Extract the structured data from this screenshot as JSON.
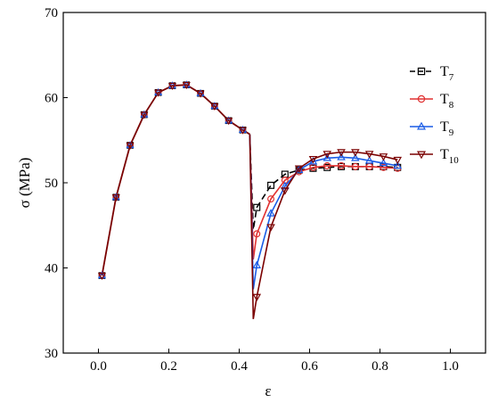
{
  "chart_data": {
    "type": "line",
    "title": "",
    "xlabel": "ε",
    "ylabel": "σ (MPa)",
    "xlim": [
      -0.1,
      1.1
    ],
    "ylim": [
      30,
      70
    ],
    "xticks": [
      0.0,
      0.2,
      0.4,
      0.6,
      0.8,
      1.0
    ],
    "xtick_labels": [
      "0.0",
      "0.2",
      "0.4",
      "0.6",
      "0.8",
      "1.0"
    ],
    "yticks": [
      30,
      40,
      50,
      60,
      70
    ],
    "ytick_labels": [
      "30",
      "40",
      "50",
      "60",
      "70"
    ],
    "legend_position": "top-right",
    "grid": false,
    "curve_common": {
      "x": [
        0.01,
        0.05,
        0.09,
        0.13,
        0.17,
        0.21,
        0.25,
        0.29,
        0.33,
        0.37,
        0.41,
        0.43
      ],
      "y": [
        39.1,
        48.3,
        54.4,
        58.0,
        60.6,
        61.4,
        61.5,
        60.5,
        59.0,
        57.3,
        56.2,
        55.7
      ]
    },
    "series": [
      {
        "name": "T",
        "subscript": "7",
        "color": "#000000",
        "marker": "square",
        "x": [
          0.44,
          0.45,
          0.49,
          0.53,
          0.57,
          0.61,
          0.65,
          0.69,
          0.73,
          0.77,
          0.81,
          0.85
        ],
        "y": [
          44.5,
          47.1,
          49.7,
          51.0,
          51.5,
          51.7,
          51.8,
          51.9,
          51.9,
          51.9,
          51.9,
          51.8
        ]
      },
      {
        "name": "T",
        "subscript": "8",
        "color": "#e03030",
        "marker": "circle",
        "x": [
          0.44,
          0.45,
          0.49,
          0.53,
          0.57,
          0.61,
          0.65,
          0.69,
          0.73,
          0.77,
          0.81,
          0.85
        ],
        "y": [
          41.0,
          44.0,
          48.1,
          50.3,
          51.3,
          51.8,
          52.0,
          52.0,
          51.9,
          51.9,
          51.8,
          51.7
        ]
      },
      {
        "name": "T",
        "subscript": "9",
        "color": "#1a5ce6",
        "marker": "triangle-up",
        "x": [
          0.44,
          0.45,
          0.49,
          0.53,
          0.57,
          0.61,
          0.65,
          0.69,
          0.73,
          0.77,
          0.81,
          0.85
        ],
        "y": [
          37.5,
          40.3,
          46.4,
          49.6,
          51.5,
          52.5,
          52.9,
          53.0,
          52.9,
          52.6,
          52.3,
          52.0
        ]
      },
      {
        "name": "T",
        "subscript": "10",
        "color": "#7a0000",
        "marker": "triangle-down",
        "x": [
          0.44,
          0.45,
          0.49,
          0.53,
          0.57,
          0.61,
          0.65,
          0.69,
          0.73,
          0.77,
          0.81,
          0.85
        ],
        "y": [
          34.0,
          36.6,
          44.8,
          49.1,
          51.7,
          52.8,
          53.4,
          53.6,
          53.6,
          53.4,
          53.1,
          52.7
        ]
      }
    ]
  }
}
